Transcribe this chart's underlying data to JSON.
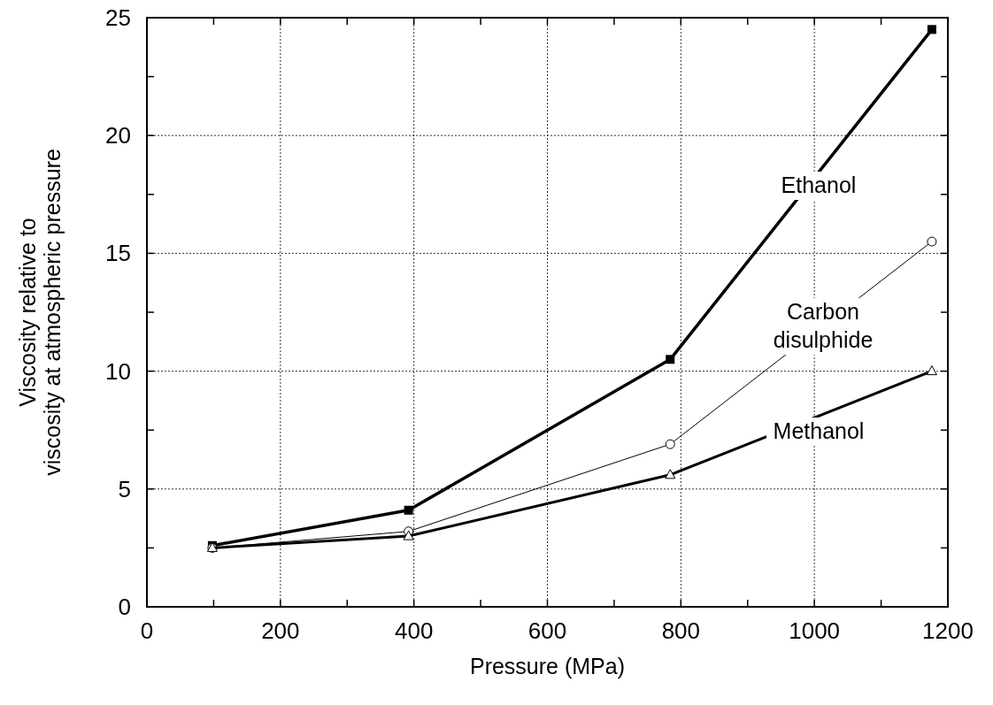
{
  "chart_data": {
    "type": "line",
    "xlabel": "Pressure (MPa)",
    "ylabel": "Viscosity relative to\nviscosity at atmospheric pressure",
    "x": [
      98,
      392,
      784,
      1176
    ],
    "series": [
      {
        "name": "Ethanol",
        "color": "#000000",
        "marker": "square",
        "values": [
          2.6,
          4.1,
          10.5,
          24.5
        ]
      },
      {
        "name": "Carbon disulphide",
        "color": "#000000",
        "marker": "circle",
        "values": [
          2.5,
          3.2,
          6.9,
          15.5
        ]
      },
      {
        "name": "Methanol",
        "color": "#000000",
        "marker": "triangle",
        "values": [
          2.5,
          3.0,
          5.6,
          10.0
        ]
      }
    ],
    "xlim": [
      0,
      1200
    ],
    "xticks": [
      0,
      200,
      400,
      600,
      800,
      1000,
      1200
    ],
    "ylim": [
      0,
      25
    ],
    "yticks": [
      0,
      5,
      10,
      15,
      20,
      25
    ],
    "grid": true,
    "legend": "right"
  }
}
